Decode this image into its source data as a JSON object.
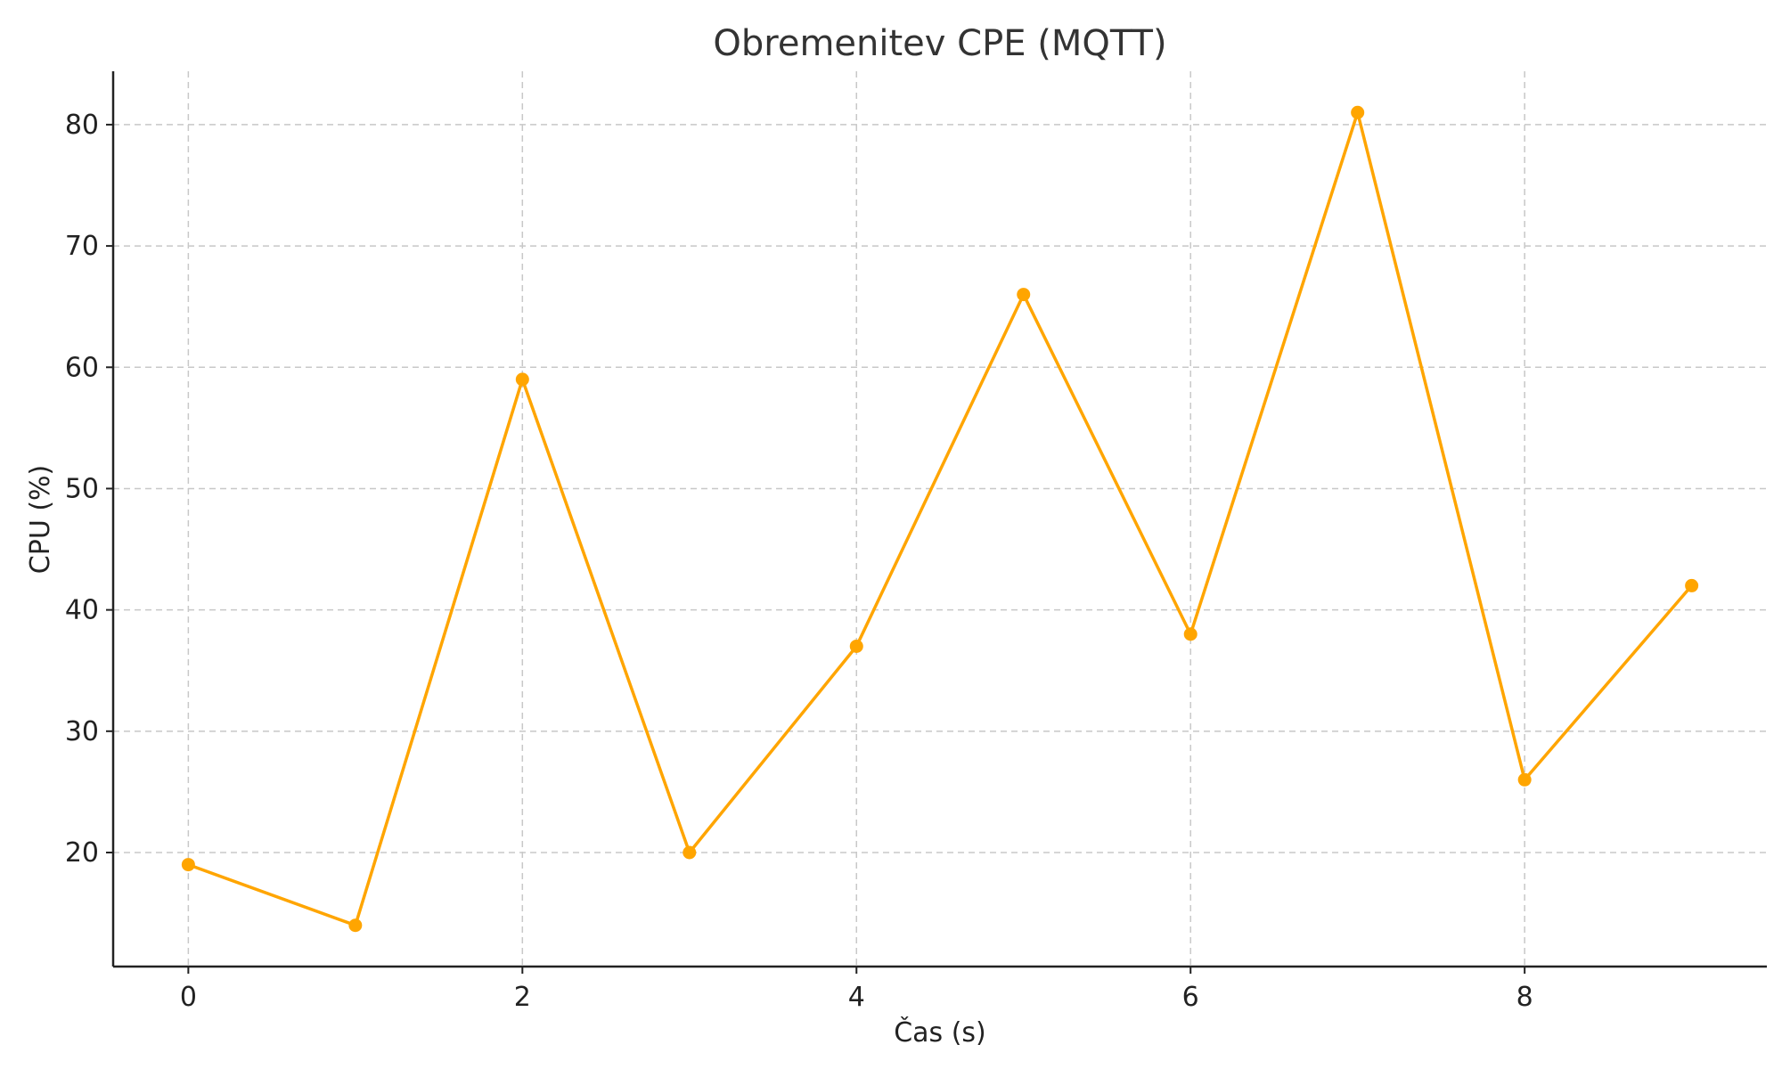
{
  "chart_data": {
    "type": "line",
    "title": "Obremenitev CPE (MQTT)",
    "xlabel": "Čas (s)",
    "ylabel": "CPU (%)",
    "x": [
      0,
      1,
      2,
      3,
      4,
      5,
      6,
      7,
      8,
      9
    ],
    "series": [
      {
        "values": [
          19,
          14,
          59,
          20,
          37,
          66,
          38,
          81,
          26,
          42
        ],
        "color": "#FFA500"
      }
    ],
    "xlim": [
      -0.45,
      9.45
    ],
    "ylim": [
      10.6,
      84.4
    ],
    "xticks": [
      0,
      2,
      4,
      6,
      8
    ],
    "yticks": [
      20,
      30,
      40,
      50,
      60,
      70,
      80
    ],
    "grid": true,
    "legend": "none"
  }
}
